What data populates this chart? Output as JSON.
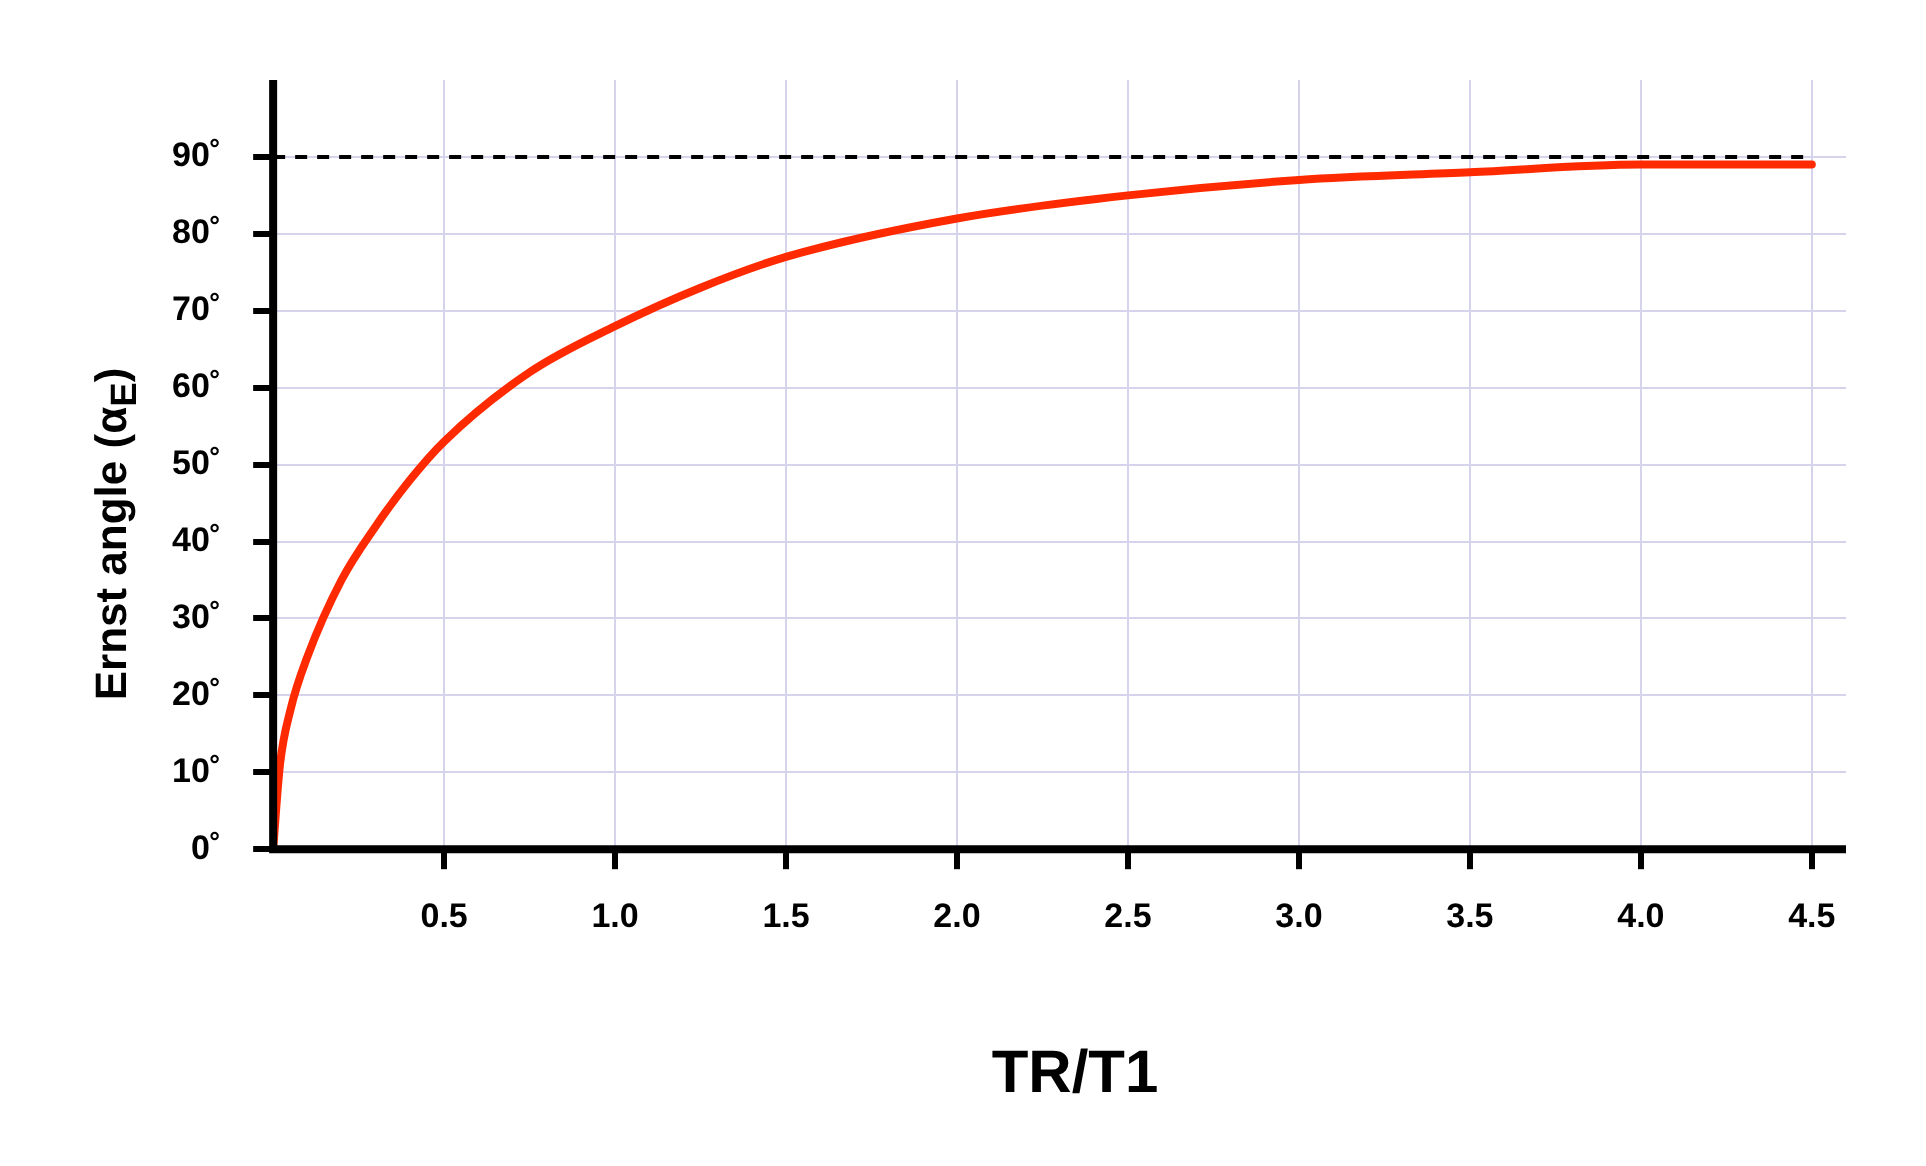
{
  "chart_data": {
    "type": "line",
    "xlabel": "TR/T1",
    "ylabel": "Ernst angle (α$_{E}$)",
    "xlim": [
      0,
      4.6
    ],
    "ylim": [
      0,
      100
    ],
    "xticks": [
      0.5,
      {
        "value": 1,
        "label": "1.0"
      },
      1.5,
      {
        "value": 2,
        "label": "2.0"
      },
      2.5,
      {
        "value": 3,
        "label": "3.0"
      },
      3.5,
      {
        "value": 4,
        "label": "4.0"
      },
      4.5
    ],
    "yticks": [
      {
        "value": 0,
        "label": "0˚"
      },
      {
        "value": 10,
        "label": "10˚"
      },
      {
        "value": 20,
        "label": "20˚"
      },
      {
        "value": 30,
        "label": "30˚"
      },
      {
        "value": 40,
        "label": "40˚"
      },
      {
        "value": 50,
        "label": "50˚"
      },
      {
        "value": 60,
        "label": "60˚"
      },
      {
        "value": 70,
        "label": "70˚"
      },
      {
        "value": 80,
        "label": "80˚"
      },
      {
        "value": 90,
        "label": "90˚"
      }
    ],
    "series": [
      {
        "color": "#ff2a00",
        "x": [
          0,
          0.02,
          0.05,
          0.1,
          0.2,
          0.3,
          0.4,
          0.5,
          0.75,
          1.0,
          1.25,
          1.5,
          2.0,
          2.5,
          3.0,
          3.5,
          4.0,
          4.5
        ],
        "values": [
          0,
          11,
          18,
          25,
          35,
          42,
          48,
          53,
          62,
          68,
          73,
          77,
          82,
          85,
          87,
          88,
          89,
          89
        ]
      }
    ],
    "ref_lines": [
      {
        "axis": "y",
        "value": 90,
        "line_style": "dashed",
        "color": "#000000"
      }
    ],
    "grid": true,
    "marker": "none",
    "line_style": "solid"
  }
}
